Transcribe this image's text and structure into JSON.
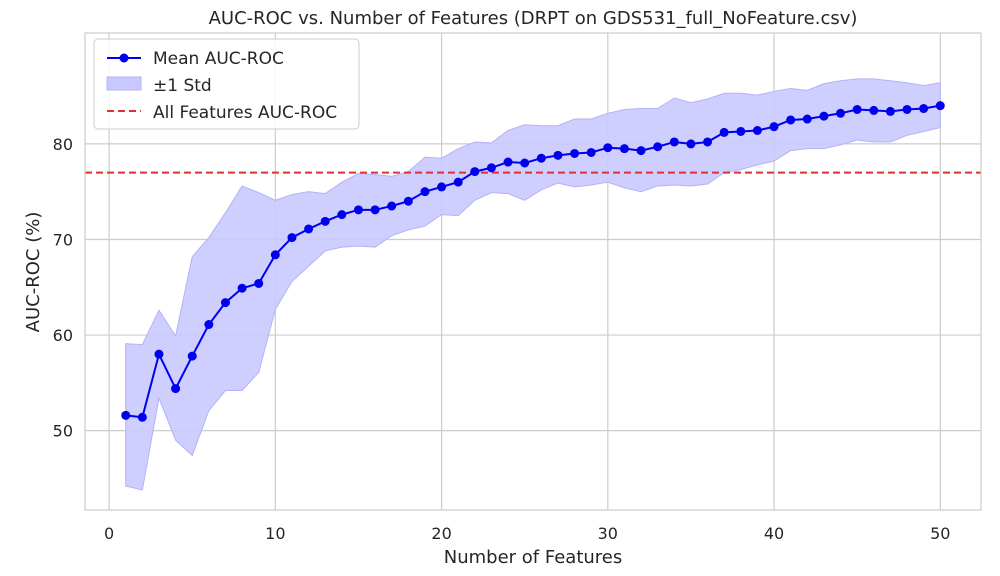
{
  "chart_data": {
    "type": "line",
    "title": "AUC-ROC vs. Number of Features (DRPT on GDS531_full_NoFeature.csv)",
    "xlabel": "Number of Features",
    "ylabel": "AUC-ROC (%)",
    "xlim": [
      -1.45,
      52.45
    ],
    "ylim": [
      41.7,
      91.6
    ],
    "xticks": [
      0,
      10,
      20,
      30,
      40,
      50
    ],
    "yticks": [
      50,
      60,
      70,
      80
    ],
    "grid": true,
    "legend_position": "top-left",
    "colors": {
      "mean_line": "#0000ee",
      "std_band_fill": "#c9c9ff",
      "std_band_edge": "#b3b3f5",
      "reference_line": "#e03030",
      "grid": "#cccccc",
      "frame": "#cccccc"
    },
    "series": [
      {
        "name": "Mean AUC-ROC",
        "x": [
          1,
          2,
          3,
          4,
          5,
          6,
          7,
          8,
          9,
          10,
          11,
          12,
          13,
          14,
          15,
          16,
          17,
          18,
          19,
          20,
          21,
          22,
          23,
          24,
          25,
          26,
          27,
          28,
          29,
          30,
          31,
          32,
          33,
          34,
          35,
          36,
          37,
          38,
          39,
          40,
          41,
          42,
          43,
          44,
          45,
          46,
          47,
          48,
          49,
          50
        ],
        "values": [
          51.6,
          51.4,
          58.0,
          54.4,
          57.8,
          61.1,
          63.4,
          64.9,
          65.4,
          68.4,
          70.2,
          71.1,
          71.9,
          72.6,
          73.1,
          73.1,
          73.5,
          74.0,
          75.0,
          75.5,
          76.0,
          77.1,
          77.5,
          78.1,
          78.0,
          78.5,
          78.8,
          79.0,
          79.1,
          79.6,
          79.5,
          79.3,
          79.7,
          80.2,
          80.0,
          80.2,
          81.2,
          81.3,
          81.4,
          81.8,
          82.5,
          82.6,
          82.9,
          83.2,
          83.6,
          83.5,
          83.4,
          83.6,
          83.7,
          84.0
        ]
      },
      {
        "name": "±1 Std",
        "upper": [
          59.1,
          59.0,
          62.6,
          59.9,
          68.2,
          70.2,
          72.8,
          75.6,
          74.9,
          74.1,
          74.7,
          75.0,
          74.8,
          76.0,
          76.9,
          76.8,
          76.6,
          77.1,
          78.6,
          78.5,
          79.5,
          80.2,
          80.1,
          81.4,
          82.0,
          81.9,
          81.9,
          82.6,
          82.6,
          83.2,
          83.6,
          83.7,
          83.7,
          84.8,
          84.3,
          84.7,
          85.3,
          85.3,
          85.1,
          85.5,
          85.8,
          85.6,
          86.3,
          86.6,
          86.8,
          86.8,
          86.6,
          86.4,
          86.1,
          86.4
        ],
        "lower": [
          44.2,
          43.8,
          53.4,
          49.0,
          47.4,
          52.1,
          54.2,
          54.2,
          56.1,
          62.7,
          65.6,
          67.2,
          68.8,
          69.2,
          69.3,
          69.2,
          70.4,
          71.0,
          71.4,
          72.6,
          72.5,
          74.1,
          74.9,
          74.8,
          74.1,
          75.2,
          75.9,
          75.5,
          75.7,
          76.0,
          75.4,
          75.0,
          75.6,
          75.7,
          75.6,
          75.8,
          77.0,
          77.3,
          77.8,
          78.2,
          79.3,
          79.5,
          79.5,
          79.9,
          80.4,
          80.2,
          80.2,
          80.9,
          81.3,
          81.7
        ]
      },
      {
        "name": "All Features AUC-ROC",
        "value": 77.0,
        "style": "dashed"
      }
    ]
  }
}
